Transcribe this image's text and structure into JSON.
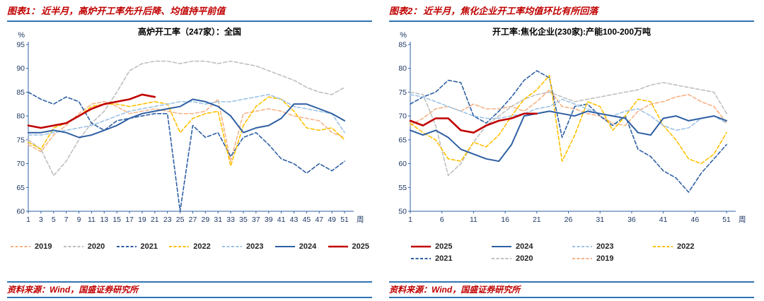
{
  "panels": [
    {
      "figure_label": "图表1：",
      "figure_title": "近半月，高炉开工率先升后降、均值持平前值",
      "source": "资料来源：Wind，国盛证券研究所"
    },
    {
      "figure_label": "图表2：",
      "figure_title": "近半月，焦化企业开工率均值环比有所回落",
      "source": "资料来源：Wind，国盛证券研究所"
    }
  ],
  "chart_data": [
    {
      "type": "line",
      "title": "高炉开工率（247家）：全国",
      "ylabel": "%",
      "xlabel": "周",
      "ylim": [
        60,
        95
      ],
      "yticks": [
        60,
        65,
        70,
        75,
        80,
        85,
        90,
        95
      ],
      "xlim": [
        1,
        52
      ],
      "xticks": [
        1,
        3,
        5,
        7,
        9,
        11,
        13,
        15,
        17,
        19,
        21,
        23,
        25,
        27,
        29,
        31,
        33,
        35,
        37,
        39,
        41,
        43,
        45,
        47,
        49,
        51
      ],
      "x": [
        1,
        3,
        5,
        7,
        9,
        11,
        13,
        15,
        17,
        19,
        21,
        23,
        25,
        27,
        29,
        31,
        33,
        35,
        37,
        39,
        41,
        43,
        45,
        47,
        49,
        51
      ],
      "grid": false,
      "legend_position": "bottom",
      "legend_rows": [
        [
          "2019",
          "2020",
          "2021",
          "2022",
          "2023",
          "2024",
          "2025"
        ]
      ],
      "series": [
        {
          "name": "2019",
          "color": "#f4b183",
          "dash": "5 3",
          "width": 1.5,
          "values": [
            74,
            72.5,
            76,
            78,
            80.5,
            82.5,
            83,
            82,
            80.5,
            81,
            81.5,
            81,
            80.5,
            80.5,
            81,
            83.5,
            70.5,
            80.5,
            81,
            81.5,
            81,
            80,
            79.5,
            79,
            76.5,
            75.5
          ]
        },
        {
          "name": "2020",
          "color": "#bfbfbf",
          "dash": "5 3",
          "width": 1.6,
          "values": [
            75,
            73,
            67.5,
            70.5,
            75,
            78.5,
            81,
            85,
            89.5,
            91,
            91.5,
            91.5,
            91,
            91.5,
            91.5,
            91,
            91.5,
            91,
            90.5,
            89.5,
            88.5,
            87.5,
            86,
            85,
            84.5,
            86
          ]
        },
        {
          "name": "2021",
          "color": "#2e5fa3",
          "dash": "5 3",
          "width": 1.6,
          "values": [
            85,
            83.5,
            82.5,
            84,
            83,
            78.5,
            77,
            79,
            79.5,
            80,
            80.5,
            80.5,
            60,
            78,
            75.5,
            76.5,
            71.5,
            75.5,
            76.5,
            74,
            71,
            70,
            68,
            70,
            68.5,
            70.5
          ]
        },
        {
          "name": "2022",
          "color": "#ffc000",
          "dash": "5 3",
          "width": 1.6,
          "values": [
            74.5,
            73,
            77.5,
            78.5,
            80,
            82,
            82.5,
            82.5,
            82,
            82.5,
            83,
            82.5,
            76.5,
            79.5,
            80.5,
            81,
            69.5,
            78,
            82,
            84,
            83.5,
            81,
            77.5,
            77,
            77.5,
            75
          ]
        },
        {
          "name": "2023",
          "color": "#9dc3e6",
          "dash": "5 3",
          "width": 1.6,
          "values": [
            76,
            76,
            76.5,
            77,
            77.5,
            78,
            79,
            80,
            81,
            81.5,
            82,
            82.5,
            83,
            83,
            82.5,
            83,
            83,
            83.5,
            84,
            84.5,
            83.5,
            82,
            81.5,
            81,
            80.5,
            76.5
          ]
        },
        {
          "name": "2024",
          "color": "#2e5fa3",
          "dash": "",
          "width": 2,
          "values": [
            76.5,
            76.5,
            77,
            76.5,
            75.5,
            76,
            77,
            78,
            79.5,
            80.5,
            81,
            81.5,
            82,
            83.5,
            83,
            82,
            80,
            76.5,
            77.5,
            78,
            79.5,
            82.5,
            82.5,
            81.5,
            80.5,
            79
          ]
        },
        {
          "name": "2025",
          "color": "#c00000",
          "dash": "",
          "width": 2.6,
          "values": [
            78,
            77.5,
            78,
            78.5,
            80,
            81.5,
            82.5,
            83,
            83.5,
            84.5,
            84
          ]
        }
      ]
    },
    {
      "type": "line",
      "title": "开工率:焦化企业(230家):产能100-200万吨",
      "ylabel": "%",
      "xlabel": "周",
      "ylim": [
        50,
        85
      ],
      "yticks": [
        50,
        55,
        60,
        65,
        70,
        75,
        80,
        85
      ],
      "xlim": [
        1,
        52
      ],
      "xticks": [
        1,
        6,
        11,
        16,
        21,
        26,
        31,
        36,
        41,
        46,
        51
      ],
      "x": [
        1,
        3,
        5,
        7,
        9,
        11,
        13,
        15,
        17,
        19,
        21,
        23,
        25,
        27,
        29,
        31,
        33,
        35,
        37,
        39,
        41,
        43,
        45,
        47,
        49,
        51
      ],
      "grid": false,
      "legend_position": "bottom",
      "legend_rows": [
        [
          "2025",
          "2024",
          "2023",
          "2022"
        ],
        [
          "2021",
          "2020",
          "2019"
        ]
      ],
      "series": [
        {
          "name": "2019",
          "color": "#f4b183",
          "dash": "5 3",
          "width": 1.6,
          "values": [
            68,
            69.5,
            71.5,
            72,
            71,
            72.5,
            71.5,
            71.5,
            72,
            71,
            73,
            75.5,
            72,
            71.5,
            70.5,
            70,
            68.5,
            68,
            71,
            72.5,
            73,
            74,
            74.5,
            73,
            72,
            68.5
          ]
        },
        {
          "name": "2020",
          "color": "#bfbfbf",
          "dash": "5 3",
          "width": 1.6,
          "values": [
            75,
            74.5,
            68,
            57.5,
            60,
            64.5,
            68,
            70,
            72,
            73.5,
            74.5,
            75,
            74,
            73,
            73.5,
            74,
            74.5,
            75,
            75.5,
            76.5,
            77,
            76.5,
            76,
            75.5,
            75,
            70.5
          ]
        },
        {
          "name": "2021",
          "color": "#2e5fa3",
          "dash": "5 3",
          "width": 1.6,
          "values": [
            72.5,
            74,
            75,
            77.5,
            77,
            70,
            68.5,
            71,
            74,
            77.5,
            79.5,
            78,
            65.5,
            72,
            72.5,
            70,
            68,
            70,
            63,
            61.5,
            58.5,
            57,
            54,
            58,
            61,
            64
          ]
        },
        {
          "name": "2022",
          "color": "#ffc000",
          "dash": "5 3",
          "width": 1.6,
          "values": [
            68.5,
            66.5,
            65,
            61,
            60.5,
            64.5,
            63.5,
            66,
            70,
            73.5,
            75.5,
            78.5,
            60.5,
            66,
            73,
            72,
            67,
            70,
            73.5,
            73,
            68,
            65,
            61,
            60,
            62,
            66.5
          ]
        },
        {
          "name": "2023",
          "color": "#9dc3e6",
          "dash": "5 3",
          "width": 1.6,
          "values": [
            74.5,
            74,
            73,
            72,
            71,
            70,
            69.5,
            69.5,
            70,
            70.5,
            71.5,
            72,
            73.5,
            72.5,
            71.5,
            70.5,
            70,
            71,
            71.5,
            70,
            68,
            67,
            67.5,
            69.5,
            70,
            68.5
          ]
        },
        {
          "name": "2024",
          "color": "#2e5fa3",
          "dash": "",
          "width": 2,
          "values": [
            67,
            66,
            67,
            65.5,
            63,
            62,
            61,
            60.5,
            64,
            70,
            70.5,
            71,
            70.5,
            70,
            71,
            70.5,
            70,
            69.5,
            66.5,
            66,
            69.5,
            70,
            69,
            69.5,
            70,
            69
          ]
        },
        {
          "name": "2025",
          "color": "#c00000",
          "dash": "",
          "width": 2.6,
          "values": [
            69,
            68,
            69.5,
            69.5,
            67,
            66.5,
            68,
            69,
            69.5,
            70.5,
            70.5
          ]
        }
      ]
    }
  ],
  "style": {
    "rule_color": "#2e74b5",
    "title_color": "#c00000",
    "axis_color": "#2e5fa3",
    "tick_text_color": "#1f3864",
    "inner_title_color": "#000000"
  }
}
